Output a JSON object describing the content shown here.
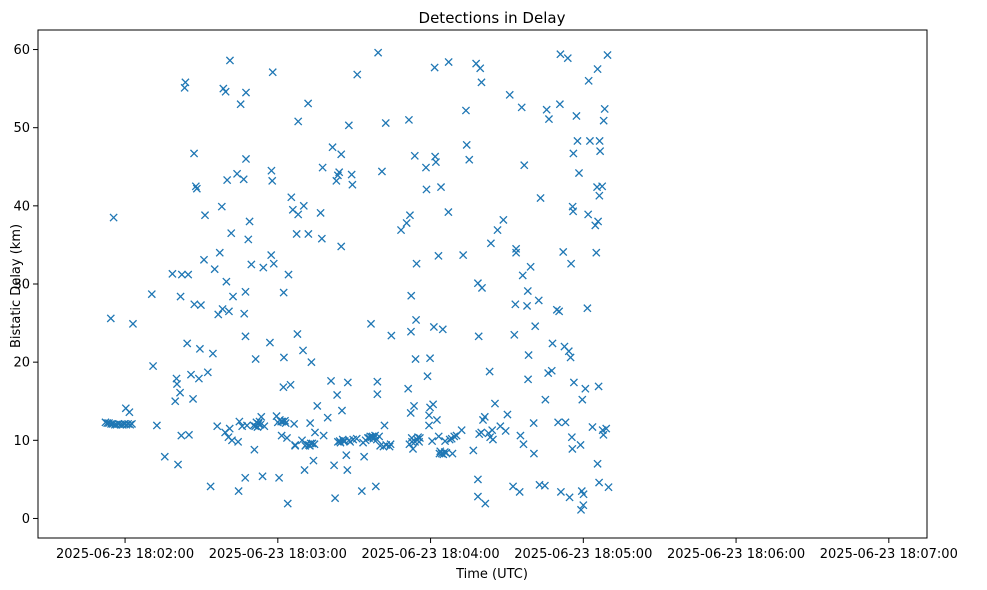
{
  "chart_data": {
    "type": "scatter",
    "title": "Detections in Delay",
    "xlabel": "Time (UTC)",
    "ylabel": "Bistatic Delay (km)",
    "marker": "x",
    "color": "#1f77b4",
    "grid": false,
    "x_unit": "seconds after 2025-06-23 18:01:30",
    "xlim": [
      -4.2,
      345
    ],
    "ylim": [
      -2.5,
      62.5
    ],
    "x_ticks": [
      {
        "value": 30,
        "label": "2025-06-23 18:02:00"
      },
      {
        "value": 90,
        "label": "2025-06-23 18:03:00"
      },
      {
        "value": 150,
        "label": "2025-06-23 18:04:00"
      },
      {
        "value": 210,
        "label": "2025-06-23 18:05:00"
      },
      {
        "value": 270,
        "label": "2025-06-23 18:06:00"
      },
      {
        "value": 330,
        "label": "2025-06-23 18:07:00"
      }
    ],
    "y_ticks": [
      {
        "value": 0,
        "label": "0"
      },
      {
        "value": 10,
        "label": "10"
      },
      {
        "value": 20,
        "label": "20"
      },
      {
        "value": 30,
        "label": "30"
      },
      {
        "value": 40,
        "label": "40"
      },
      {
        "value": 50,
        "label": "50"
      },
      {
        "value": 60,
        "label": "60"
      }
    ],
    "points": [
      [
        22.3,
        12.3
      ],
      [
        23.0,
        12.2
      ],
      [
        23.7,
        12.2
      ],
      [
        24.5,
        12.1
      ],
      [
        25.2,
        12.1
      ],
      [
        26.0,
        12.0
      ],
      [
        26.7,
        12.0
      ],
      [
        27.5,
        12.1
      ],
      [
        28.2,
        12.0
      ],
      [
        29.0,
        12.0
      ],
      [
        29.7,
        12.1
      ],
      [
        30.5,
        12.0
      ],
      [
        31.2,
        12.1
      ],
      [
        32.0,
        12.0
      ],
      [
        32.7,
        12.1
      ],
      [
        24.4,
        25.6
      ],
      [
        25.5,
        38.5
      ],
      [
        30.3,
        14.1
      ],
      [
        31.7,
        13.6
      ],
      [
        33.1,
        24.9
      ],
      [
        40.5,
        28.7
      ],
      [
        41.0,
        19.5
      ],
      [
        42.5,
        11.9
      ],
      [
        45.6,
        7.9
      ],
      [
        48.6,
        31.3
      ],
      [
        49.7,
        15.0
      ],
      [
        50.2,
        17.9
      ],
      [
        50.4,
        17.2
      ],
      [
        50.8,
        6.9
      ],
      [
        51.6,
        16.1
      ],
      [
        51.8,
        28.4
      ],
      [
        52.3,
        31.2
      ],
      [
        52.1,
        10.6
      ],
      [
        53.4,
        55.1
      ],
      [
        53.7,
        55.8
      ],
      [
        54.4,
        22.4
      ],
      [
        54.8,
        31.2
      ],
      [
        55.1,
        10.7
      ],
      [
        55.9,
        18.4
      ],
      [
        56.7,
        15.3
      ],
      [
        57.1,
        46.7
      ],
      [
        57.2,
        27.4
      ],
      [
        57.8,
        42.5
      ],
      [
        58.2,
        42.2
      ],
      [
        59.0,
        17.9
      ],
      [
        59.4,
        21.7
      ],
      [
        59.8,
        27.3
      ],
      [
        61.0,
        33.1
      ],
      [
        61.4,
        38.8
      ],
      [
        62.5,
        18.7
      ],
      [
        63.6,
        4.1
      ],
      [
        64.5,
        21.1
      ],
      [
        65.2,
        31.9
      ],
      [
        66.2,
        11.8
      ],
      [
        66.6,
        26.1
      ],
      [
        67.2,
        34.0
      ],
      [
        68.0,
        39.9
      ],
      [
        68.3,
        26.8
      ],
      [
        68.6,
        55.0
      ],
      [
        69.3,
        11.0
      ],
      [
        69.5,
        54.6
      ],
      [
        69.8,
        30.3
      ],
      [
        70.1,
        43.3
      ],
      [
        70.6,
        10.4
      ],
      [
        70.8,
        26.5
      ],
      [
        71.1,
        11.5
      ],
      [
        71.2,
        58.6
      ],
      [
        71.7,
        36.5
      ],
      [
        72.0,
        10.0
      ],
      [
        72.4,
        28.4
      ],
      [
        74.0,
        44.1
      ],
      [
        74.4,
        9.8
      ],
      [
        74.6,
        3.5
      ],
      [
        74.9,
        12.4
      ],
      [
        75.4,
        53.0
      ],
      [
        76.0,
        11.8
      ],
      [
        76.6,
        43.4
      ],
      [
        76.8,
        26.2
      ],
      [
        77.2,
        5.2
      ],
      [
        77.3,
        29.0
      ],
      [
        77.3,
        23.3
      ],
      [
        77.5,
        54.5
      ],
      [
        77.5,
        46.0
      ],
      [
        77.9,
        11.9
      ],
      [
        78.4,
        35.7
      ],
      [
        78.9,
        38.0
      ],
      [
        79.6,
        32.5
      ],
      [
        80.5,
        11.9
      ],
      [
        80.8,
        8.8
      ],
      [
        81.1,
        11.8
      ],
      [
        81.3,
        20.4
      ],
      [
        81.6,
        12.3
      ],
      [
        82.0,
        11.7
      ],
      [
        82.4,
        12.1
      ],
      [
        82.8,
        12.4
      ],
      [
        83.2,
        12.0
      ],
      [
        83.5,
        13.0
      ],
      [
        84.0,
        5.4
      ],
      [
        84.3,
        32.1
      ],
      [
        84.7,
        11.8
      ],
      [
        86.9,
        22.5
      ],
      [
        87.4,
        33.7
      ],
      [
        87.5,
        44.5
      ],
      [
        87.8,
        43.2
      ],
      [
        88.0,
        57.1
      ],
      [
        88.4,
        32.6
      ],
      [
        89.5,
        13.1
      ],
      [
        90.0,
        12.3
      ],
      [
        90.5,
        5.2
      ],
      [
        90.8,
        12.6
      ],
      [
        91.3,
        12.4
      ],
      [
        91.5,
        10.6
      ],
      [
        91.8,
        12.4
      ],
      [
        92.3,
        28.9
      ],
      [
        92.2,
        16.8
      ],
      [
        92.4,
        20.6
      ],
      [
        92.8,
        12.5
      ],
      [
        93.1,
        12.2
      ],
      [
        93.6,
        10.3
      ],
      [
        93.9,
        1.9
      ],
      [
        94.2,
        31.2
      ],
      [
        95.0,
        17.1
      ],
      [
        95.3,
        41.1
      ],
      [
        95.9,
        39.5
      ],
      [
        96.4,
        12.1
      ],
      [
        96.8,
        9.4
      ],
      [
        96.8,
        9.3
      ],
      [
        97.4,
        36.4
      ],
      [
        97.7,
        23.6
      ],
      [
        98.0,
        50.8
      ],
      [
        98.0,
        38.9
      ],
      [
        99.5,
        10.0
      ],
      [
        99.9,
        21.5
      ],
      [
        100.2,
        40.0
      ],
      [
        100.5,
        6.2
      ],
      [
        100.8,
        9.3
      ],
      [
        101.3,
        9.5
      ],
      [
        101.9,
        53.1
      ],
      [
        102.0,
        36.4
      ],
      [
        102.2,
        9.4
      ],
      [
        102.6,
        9.3
      ],
      [
        102.7,
        12.2
      ],
      [
        102.9,
        9.6
      ],
      [
        103.2,
        20.0
      ],
      [
        103.6,
        9.6
      ],
      [
        104.0,
        7.4
      ],
      [
        104.4,
        9.5
      ],
      [
        104.6,
        11.0
      ],
      [
        105.5,
        14.4
      ],
      [
        106.8,
        39.1
      ],
      [
        107.3,
        35.8
      ],
      [
        107.6,
        44.9
      ],
      [
        108.0,
        10.6
      ],
      [
        109.6,
        12.9
      ],
      [
        110.9,
        17.6
      ],
      [
        111.5,
        47.5
      ],
      [
        112.1,
        6.8
      ],
      [
        112.5,
        2.6
      ],
      [
        113.0,
        43.2
      ],
      [
        113.3,
        15.8
      ],
      [
        113.6,
        43.9
      ],
      [
        113.6,
        9.8
      ],
      [
        114.1,
        44.3
      ],
      [
        114.3,
        9.9
      ],
      [
        114.6,
        9.7
      ],
      [
        114.9,
        46.6
      ],
      [
        114.9,
        34.8
      ],
      [
        115.2,
        13.8
      ],
      [
        115.5,
        10.1
      ],
      [
        115.8,
        9.9
      ],
      [
        116.3,
        9.9
      ],
      [
        116.9,
        8.1
      ],
      [
        117.3,
        6.2
      ],
      [
        117.5,
        17.4
      ],
      [
        117.9,
        50.3
      ],
      [
        118.0,
        10.0
      ],
      [
        118.4,
        9.8
      ],
      [
        119.0,
        44.0
      ],
      [
        119.3,
        42.7
      ],
      [
        119.6,
        10.1
      ],
      [
        121.0,
        10.2
      ],
      [
        121.2,
        56.8
      ],
      [
        123.0,
        3.5
      ],
      [
        123.5,
        9.7
      ],
      [
        123.9,
        7.9
      ],
      [
        124.5,
        10.0
      ],
      [
        125.4,
        10.3
      ],
      [
        125.9,
        10.3
      ],
      [
        126.3,
        10.5
      ],
      [
        126.6,
        24.9
      ],
      [
        126.8,
        10.4
      ],
      [
        127.2,
        10.5
      ],
      [
        127.5,
        10.2
      ],
      [
        128.2,
        10.6
      ],
      [
        128.5,
        4.1
      ],
      [
        128.9,
        10.1
      ],
      [
        129.1,
        17.5
      ],
      [
        129.1,
        15.9
      ],
      [
        129.4,
        59.6
      ],
      [
        129.8,
        10.5
      ],
      [
        130.2,
        9.3
      ],
      [
        130.9,
        44.4
      ],
      [
        131.5,
        9.2
      ],
      [
        131.9,
        11.9
      ],
      [
        132.4,
        50.6
      ],
      [
        132.6,
        9.4
      ],
      [
        133.9,
        9.2
      ],
      [
        134.3,
        9.5
      ],
      [
        134.6,
        23.4
      ],
      [
        138.4,
        36.9
      ],
      [
        140.6,
        37.8
      ],
      [
        141.2,
        16.6
      ],
      [
        141.5,
        51.0
      ],
      [
        141.7,
        9.5
      ],
      [
        141.9,
        38.8
      ],
      [
        142.2,
        13.5
      ],
      [
        142.3,
        23.9
      ],
      [
        142.4,
        28.5
      ],
      [
        142.6,
        10.3
      ],
      [
        142.7,
        9.8
      ],
      [
        143.1,
        8.9
      ],
      [
        143.5,
        14.4
      ],
      [
        143.8,
        46.4
      ],
      [
        143.9,
        9.8
      ],
      [
        144.1,
        20.4
      ],
      [
        144.3,
        25.4
      ],
      [
        144.5,
        32.6
      ],
      [
        144.7,
        10.1
      ],
      [
        145.1,
        10.4
      ],
      [
        145.5,
        9.8
      ],
      [
        145.8,
        10.3
      ],
      [
        148.2,
        44.9
      ],
      [
        148.4,
        42.1
      ],
      [
        148.8,
        18.2
      ],
      [
        149.4,
        13.2
      ],
      [
        149.4,
        11.9
      ],
      [
        149.8,
        20.5
      ],
      [
        149.8,
        14.2
      ],
      [
        150.6,
        9.9
      ],
      [
        151.0,
        14.6
      ],
      [
        151.3,
        24.5
      ],
      [
        151.6,
        57.7
      ],
      [
        151.8,
        46.3
      ],
      [
        152.1,
        45.6
      ],
      [
        152.5,
        12.6
      ],
      [
        153.1,
        33.6
      ],
      [
        153.2,
        10.5
      ],
      [
        153.5,
        8.3
      ],
      [
        153.8,
        8.6
      ],
      [
        154.1,
        42.4
      ],
      [
        154.4,
        8.3
      ],
      [
        154.8,
        24.2
      ],
      [
        155.0,
        8.2
      ],
      [
        155.6,
        8.5
      ],
      [
        155.7,
        9.9
      ],
      [
        156.2,
        8.4
      ],
      [
        157.0,
        39.2
      ],
      [
        157.1,
        58.4
      ],
      [
        157.5,
        10.1
      ],
      [
        158.3,
        10.2
      ],
      [
        158.6,
        8.3
      ],
      [
        159.3,
        10.5
      ],
      [
        160.2,
        10.6
      ],
      [
        162.2,
        11.3
      ],
      [
        162.8,
        33.7
      ],
      [
        163.9,
        52.2
      ],
      [
        164.2,
        47.8
      ],
      [
        165.2,
        45.9
      ],
      [
        166.8,
        8.7
      ],
      [
        167.9,
        58.2
      ],
      [
        168.6,
        2.8
      ],
      [
        168.6,
        5.0
      ],
      [
        168.6,
        30.1
      ],
      [
        168.9,
        23.3
      ],
      [
        169.1,
        10.8
      ],
      [
        169.5,
        57.6
      ],
      [
        169.9,
        11.0
      ],
      [
        170.0,
        55.8
      ],
      [
        170.2,
        29.5
      ],
      [
        170.6,
        12.6
      ],
      [
        171.3,
        13.0
      ],
      [
        171.5,
        1.9
      ],
      [
        172.8,
        10.9
      ],
      [
        173.2,
        18.8
      ],
      [
        173.4,
        10.4
      ],
      [
        173.7,
        35.2
      ],
      [
        174.2,
        11.3
      ],
      [
        174.5,
        10.1
      ],
      [
        175.3,
        14.7
      ],
      [
        176.3,
        36.9
      ],
      [
        177.4,
        11.8
      ],
      [
        178.6,
        38.2
      ],
      [
        179.5,
        11.2
      ],
      [
        180.2,
        13.3
      ],
      [
        181.1,
        54.2
      ],
      [
        182.4,
        4.1
      ],
      [
        182.9,
        23.5
      ],
      [
        183.3,
        27.4
      ],
      [
        183.6,
        34.0
      ],
      [
        183.6,
        34.5
      ],
      [
        185.0,
        3.4
      ],
      [
        185.3,
        10.6
      ],
      [
        185.8,
        52.6
      ],
      [
        186.2,
        31.1
      ],
      [
        186.5,
        9.5
      ],
      [
        186.8,
        45.2
      ],
      [
        187.9,
        27.2
      ],
      [
        188.2,
        29.1
      ],
      [
        188.3,
        17.8
      ],
      [
        188.5,
        20.9
      ],
      [
        189.3,
        32.2
      ],
      [
        190.5,
        12.2
      ],
      [
        190.6,
        8.3
      ],
      [
        191.1,
        24.6
      ],
      [
        192.5,
        27.9
      ],
      [
        192.8,
        4.3
      ],
      [
        193.2,
        41.0
      ],
      [
        194.9,
        4.2
      ],
      [
        195.1,
        15.2
      ],
      [
        195.6,
        52.3
      ],
      [
        196.2,
        18.6
      ],
      [
        196.5,
        51.1
      ],
      [
        197.6,
        18.9
      ],
      [
        197.9,
        22.4
      ],
      [
        199.6,
        26.7
      ],
      [
        200.1,
        12.3
      ],
      [
        200.5,
        26.5
      ],
      [
        200.8,
        53.0
      ],
      [
        201.0,
        59.4
      ],
      [
        201.2,
        3.4
      ],
      [
        202.1,
        34.1
      ],
      [
        202.6,
        22.0
      ],
      [
        203.0,
        12.3
      ],
      [
        203.9,
        58.9
      ],
      [
        204.3,
        21.4
      ],
      [
        204.6,
        2.7
      ],
      [
        205.0,
        20.6
      ],
      [
        205.2,
        32.6
      ],
      [
        205.5,
        10.4
      ],
      [
        205.7,
        8.9
      ],
      [
        205.8,
        39.9
      ],
      [
        206.0,
        39.3
      ],
      [
        206.1,
        46.7
      ],
      [
        206.3,
        17.4
      ],
      [
        207.3,
        51.5
      ],
      [
        207.7,
        48.3
      ],
      [
        208.3,
        44.2
      ],
      [
        208.9,
        9.4
      ],
      [
        209.1,
        1.1
      ],
      [
        209.4,
        3.5
      ],
      [
        209.6,
        15.2
      ],
      [
        210.0,
        1.7
      ],
      [
        210.1,
        3.1
      ],
      [
        210.8,
        16.6
      ],
      [
        211.6,
        26.9
      ],
      [
        211.9,
        38.9
      ],
      [
        212.1,
        56.0
      ],
      [
        212.6,
        48.3
      ],
      [
        213.6,
        11.7
      ],
      [
        214.7,
        37.5
      ],
      [
        215.1,
        34.0
      ],
      [
        215.4,
        42.4
      ],
      [
        215.6,
        7.0
      ],
      [
        215.6,
        57.5
      ],
      [
        215.8,
        38.0
      ],
      [
        216.0,
        16.9
      ],
      [
        216.2,
        4.6
      ],
      [
        216.3,
        41.3
      ],
      [
        216.4,
        48.3
      ],
      [
        216.6,
        47.0
      ],
      [
        217.4,
        42.5
      ],
      [
        217.6,
        11.3
      ],
      [
        217.9,
        10.7
      ],
      [
        218.0,
        50.9
      ],
      [
        218.4,
        52.4
      ],
      [
        219.0,
        11.5
      ],
      [
        219.5,
        59.3
      ],
      [
        219.9,
        4.0
      ]
    ]
  }
}
